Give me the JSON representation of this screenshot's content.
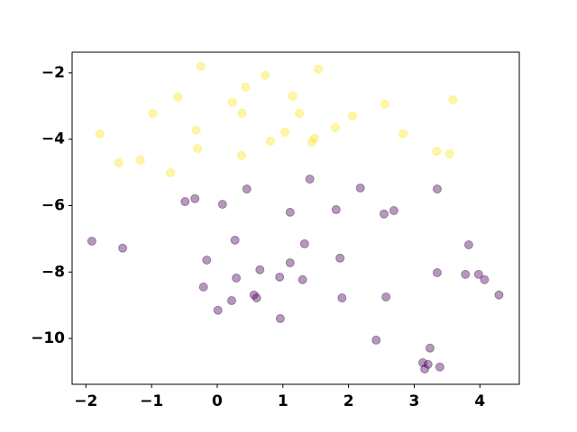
{
  "chart_data": {
    "type": "scatter",
    "xlim": [
      -2.21,
      4.6
    ],
    "ylim": [
      -11.38,
      -1.38
    ],
    "xticks": [
      {
        "value": -2,
        "label": "−2"
      },
      {
        "value": -1,
        "label": "−1"
      },
      0,
      1,
      2,
      3,
      4
    ],
    "yticks": [
      {
        "value": -2,
        "label": "−2"
      },
      {
        "value": -4,
        "label": "−4"
      },
      {
        "value": -6,
        "label": "−6"
      },
      {
        "value": -8,
        "label": "−8"
      },
      {
        "value": -10,
        "label": "−10"
      }
    ],
    "opacity": 0.4,
    "series": [
      {
        "color": "#fde725",
        "x": [
          -0.25,
          0.73,
          1.54,
          -0.6,
          0.43,
          1.15,
          -0.98,
          0.23,
          0.38,
          1.25,
          2.06,
          2.55,
          3.59,
          -1.79,
          -0.32,
          1.03,
          1.8,
          2.83,
          -1.5,
          -1.17,
          -0.3,
          0.81,
          1.48,
          1.44,
          0.37,
          -0.71,
          3.34,
          3.54
        ],
        "y": [
          -1.81,
          -2.08,
          -1.89,
          -2.73,
          -2.43,
          -2.7,
          -3.22,
          -2.89,
          -3.22,
          -3.22,
          -3.3,
          -2.95,
          -2.81,
          -3.84,
          -3.73,
          -3.79,
          -3.65,
          -3.84,
          -4.71,
          -4.63,
          -4.28,
          -4.06,
          -3.98,
          -4.09,
          -4.49,
          -5.01,
          -4.36,
          -4.44
        ]
      },
      {
        "color": "#440154",
        "x": [
          -1.91,
          -1.44,
          -0.49,
          -0.34,
          0.08,
          0.45,
          1.41,
          2.18,
          1.11,
          1.81,
          2.54,
          2.69,
          3.35,
          0.27,
          1.33,
          3.83,
          -0.16,
          0.65,
          1.11,
          1.87,
          0.29,
          0.95,
          1.3,
          3.35,
          3.78,
          3.98,
          4.07,
          -0.21,
          0.22,
          0.56,
          0.6,
          1.9,
          2.57,
          4.29,
          0.01,
          0.96,
          2.42,
          3.24,
          3.13,
          3.21,
          3.16,
          3.39
        ],
        "y": [
          -7.07,
          -7.28,
          -5.88,
          -5.79,
          -5.96,
          -5.5,
          -5.2,
          -5.47,
          -6.2,
          -6.12,
          -6.25,
          -6.15,
          -5.5,
          -7.04,
          -7.15,
          -7.18,
          -7.64,
          -7.93,
          -7.72,
          -7.58,
          -8.18,
          -8.15,
          -8.23,
          -8.02,
          -8.07,
          -8.07,
          -8.23,
          -8.45,
          -8.86,
          -8.69,
          -8.78,
          -8.78,
          -8.75,
          -8.69,
          -9.15,
          -9.4,
          -10.05,
          -10.29,
          -10.73,
          -10.78,
          -10.92,
          -10.86
        ]
      }
    ]
  }
}
